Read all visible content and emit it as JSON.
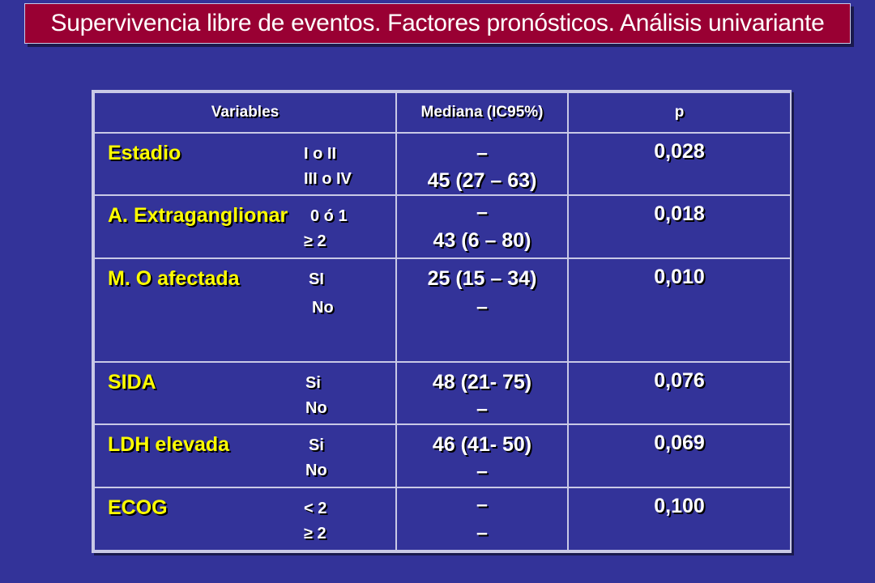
{
  "title": "Supervivencia libre de eventos. Factores pronósticos. Análisis univariante",
  "table": {
    "headers": [
      "Variables",
      "Mediana (IC95%)",
      "p"
    ],
    "rows": [
      {
        "variable": "Estadio",
        "cat1": "I o II",
        "cat2": "III o IV",
        "med1": "–",
        "med2": "45 (27 – 63)",
        "p": "0,028"
      },
      {
        "variable": "A. Extraganglionar",
        "cat1": "0 ó 1",
        "cat2": "≥ 2",
        "med1": "–",
        "med2": "43 (6 – 80)",
        "p": "0,018"
      },
      {
        "variable": "M. O afectada",
        "cat1": "SI",
        "cat2": "No",
        "med1": "25 (15 – 34)",
        "med2": "–",
        "p": "0,010"
      },
      {
        "variable": "SIDA",
        "cat1": "Si",
        "cat2": "No",
        "med1": "48 (21- 75)",
        "med2": "–",
        "p": "0,076"
      },
      {
        "variable": "LDH elevada",
        "cat1": "Si",
        "cat2": "No",
        "med1": "46 (41- 50)",
        "med2": "–",
        "p": "0,069"
      },
      {
        "variable": "ECOG",
        "cat1": "< 2",
        "cat2": "≥ 2",
        "med1": "–",
        "med2": "–",
        "p": "0,100"
      }
    ]
  }
}
